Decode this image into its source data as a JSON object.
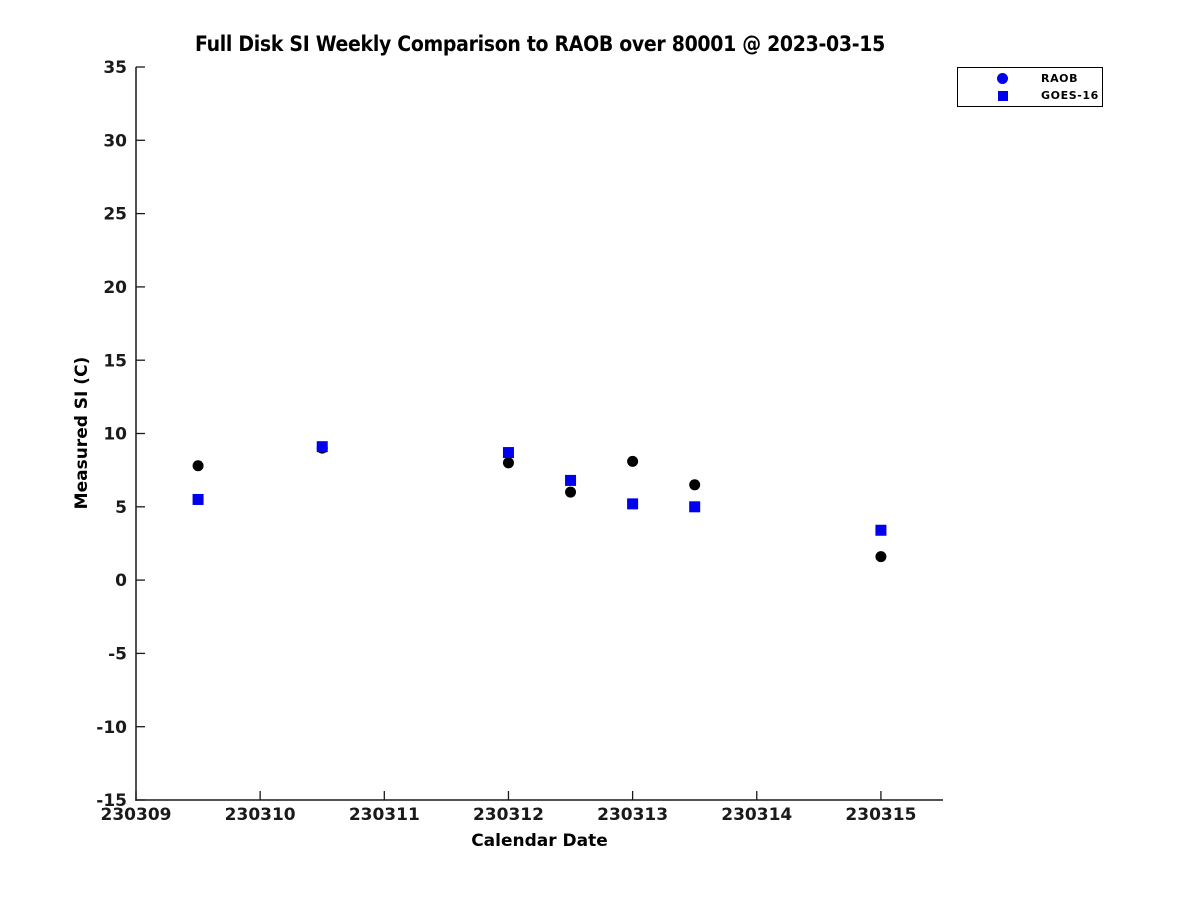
{
  "title": "Full Disk SI Weekly Comparison to RAOB over 80001 @ 2023-03-15",
  "colors": {
    "background": "#ffffff",
    "axis": "#1a1a1a",
    "tick_label": "#1a1a1a",
    "raob_marker": "#000000",
    "goes_marker": "#0000ee",
    "legend_marker": "#0000ee",
    "legend_border": "#000000"
  },
  "legend": {
    "entries": [
      {
        "label": "RAOB",
        "marker": "circle",
        "color": "#0000ee"
      },
      {
        "label": "GOES-16",
        "marker": "square",
        "color": "#0000ee"
      }
    ]
  },
  "chart_data": {
    "type": "scatter",
    "title": "Full Disk SI Weekly Comparison to RAOB over 80001 @ 2023-03-15",
    "xlabel": "Calendar Date",
    "ylabel": "Measured SI (C)",
    "xlim": [
      230309,
      230315.5
    ],
    "ylim": [
      -15,
      35
    ],
    "xticks": [
      230309,
      230310,
      230311,
      230312,
      230313,
      230314,
      230315
    ],
    "yticks": [
      -15,
      -10,
      -5,
      0,
      5,
      10,
      15,
      20,
      25,
      30,
      35
    ],
    "grid": false,
    "legend_position": "top-right-outside",
    "series": [
      {
        "name": "RAOB",
        "marker": "circle",
        "color": "#000000",
        "legend_color": "#0000ee",
        "points": [
          [
            230309.5,
            7.8
          ],
          [
            230310.5,
            9.0
          ],
          [
            230312.0,
            8.0
          ],
          [
            230312.5,
            6.0
          ],
          [
            230313.0,
            8.1
          ],
          [
            230313.5,
            6.5
          ],
          [
            230315.0,
            1.6
          ]
        ]
      },
      {
        "name": "GOES-16",
        "marker": "square",
        "color": "#0000ee",
        "legend_color": "#0000ee",
        "points": [
          [
            230309.5,
            5.5
          ],
          [
            230310.5,
            9.1
          ],
          [
            230312.0,
            8.7
          ],
          [
            230312.5,
            6.8
          ],
          [
            230313.0,
            5.2
          ],
          [
            230313.5,
            5.0
          ],
          [
            230315.0,
            3.4
          ]
        ]
      }
    ]
  }
}
